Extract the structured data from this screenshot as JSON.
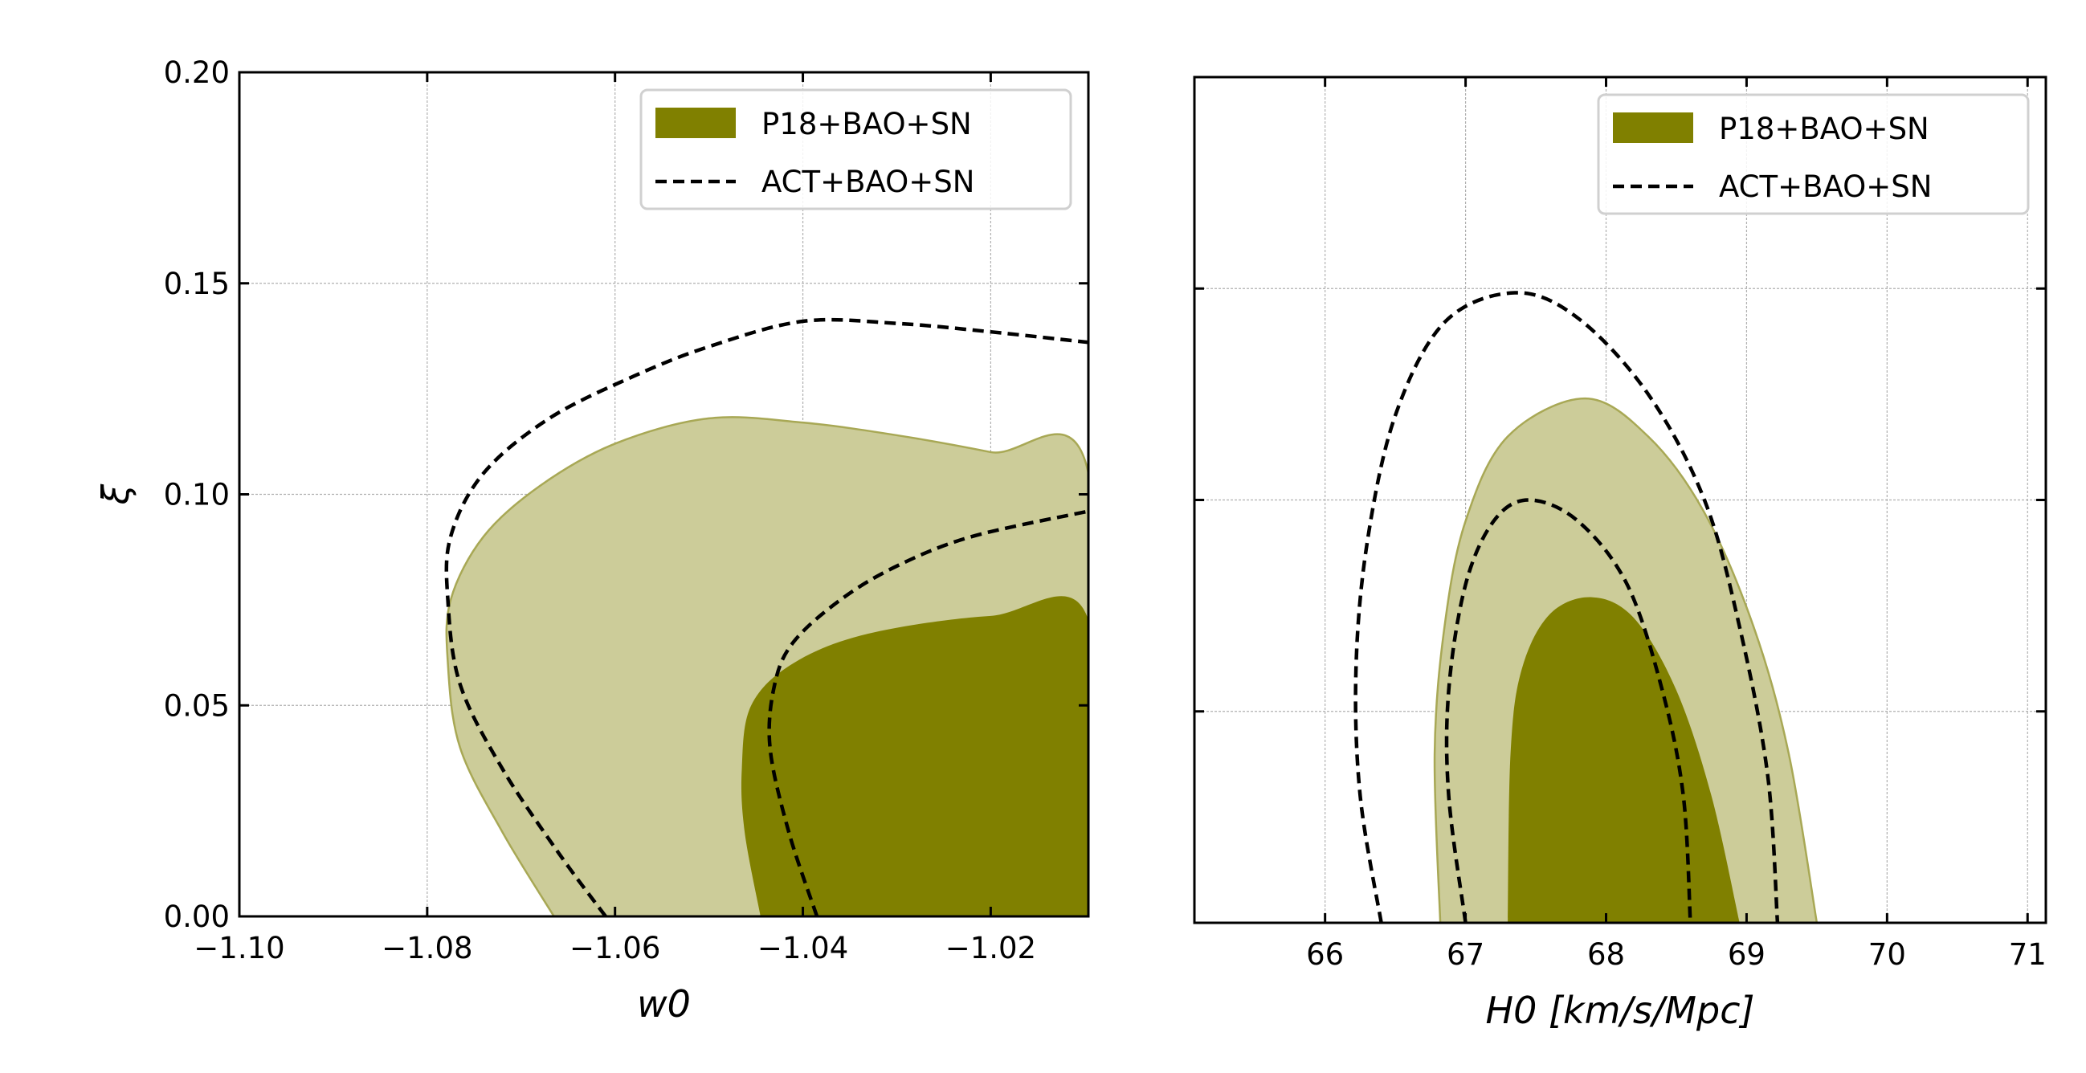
{
  "chart_data": [
    {
      "type": "contour",
      "xlabel": "w0",
      "ylabel": "ξ",
      "xlim": [
        -1.1,
        -1.0096
      ],
      "ylim": [
        0.0,
        0.2
      ],
      "xticks": [
        -1.1,
        -1.08,
        -1.06,
        -1.04,
        -1.02
      ],
      "xtick_labels": [
        "−1.10",
        "−1.08",
        "−1.06",
        "−1.04",
        "−1.02"
      ],
      "yticks": [
        0.0,
        0.05,
        0.1,
        0.15,
        0.2
      ],
      "ytick_labels": [
        "0.00",
        "0.05",
        "0.10",
        "0.15",
        "0.20"
      ],
      "grid": true,
      "legend": {
        "placement": "top-right",
        "entries": [
          "P18+BAO+SN",
          "ACT+BAO+SN"
        ]
      },
      "series": [
        {
          "name": "P18+BAO+SN 2σ",
          "style": "fill-light",
          "points": [
            [
              -1.0665,
              0
            ],
            [
              -1.072,
              0.02
            ],
            [
              -1.0765,
              0.04
            ],
            [
              -1.0778,
              0.06
            ],
            [
              -1.0775,
              0.075
            ],
            [
              -1.074,
              0.09
            ],
            [
              -1.068,
              0.102
            ],
            [
              -1.06,
              0.112
            ],
            [
              -1.05,
              0.118
            ],
            [
              -1.04,
              0.117
            ],
            [
              -1.03,
              0.114
            ],
            [
              -1.02,
              0.11
            ],
            [
              -1.0096,
              0.105
            ],
            [
              -1.0096,
              0
            ]
          ]
        },
        {
          "name": "P18+BAO+SN 1σ",
          "style": "fill-dark",
          "points": [
            [
              -1.0445,
              0
            ],
            [
              -1.0462,
              0.02
            ],
            [
              -1.0465,
              0.035
            ],
            [
              -1.0455,
              0.05
            ],
            [
              -1.041,
              0.06
            ],
            [
              -1.033,
              0.067
            ],
            [
              -1.02,
              0.0712
            ],
            [
              -1.0096,
              0.0702
            ],
            [
              -1.0096,
              0
            ]
          ]
        },
        {
          "name": "ACT+BAO+SN 2σ",
          "style": "dashed",
          "points": [
            [
              -1.061,
              0
            ],
            [
              -1.066,
              0.015
            ],
            [
              -1.072,
              0.035
            ],
            [
              -1.0765,
              0.055
            ],
            [
              -1.0778,
              0.075
            ],
            [
              -1.0775,
              0.09
            ],
            [
              -1.074,
              0.105
            ],
            [
              -1.067,
              0.118
            ],
            [
              -1.058,
              0.128
            ],
            [
              -1.05,
              0.135
            ],
            [
              -1.04,
              0.141
            ],
            [
              -1.03,
              0.1405
            ],
            [
              -1.02,
              0.1385
            ],
            [
              -1.0096,
              0.136
            ]
          ]
        },
        {
          "name": "ACT+BAO+SN 1σ",
          "style": "dashed",
          "points": [
            [
              -1.0385,
              0
            ],
            [
              -1.0415,
              0.02
            ],
            [
              -1.0435,
              0.04
            ],
            [
              -1.043,
              0.055
            ],
            [
              -1.041,
              0.065
            ],
            [
              -1.036,
              0.075
            ],
            [
              -1.03,
              0.083
            ],
            [
              -1.022,
              0.09
            ],
            [
              -1.0096,
              0.096
            ]
          ]
        }
      ]
    },
    {
      "type": "contour",
      "xlabel": "H0 [km/s/Mpc]",
      "ylabel": "",
      "xlim": [
        65.07,
        71.13
      ],
      "ylim": [
        0.0,
        0.2
      ],
      "xticks": [
        66,
        67,
        68,
        69,
        70,
        71
      ],
      "xtick_labels": [
        "66",
        "67",
        "68",
        "69",
        "70",
        "71"
      ],
      "yticks": [
        0.0,
        0.05,
        0.1,
        0.15,
        0.2
      ],
      "grid": true,
      "legend": {
        "placement": "top-right",
        "entries": [
          "P18+BAO+SN",
          "ACT+BAO+SN"
        ]
      },
      "series": [
        {
          "name": "P18+BAO+SN 2σ",
          "style": "fill-light",
          "points": [
            [
              66.82,
              0
            ],
            [
              66.78,
              0.04
            ],
            [
              66.85,
              0.07
            ],
            [
              67.0,
              0.095
            ],
            [
              67.3,
              0.115
            ],
            [
              67.85,
              0.124
            ],
            [
              68.3,
              0.115
            ],
            [
              68.7,
              0.097
            ],
            [
              69.05,
              0.07
            ],
            [
              69.3,
              0.04
            ],
            [
              69.5,
              0
            ]
          ]
        },
        {
          "name": "P18+BAO+SN 1σ",
          "style": "fill-dark",
          "points": [
            [
              67.3,
              0
            ],
            [
              67.32,
              0.04
            ],
            [
              67.4,
              0.06
            ],
            [
              67.6,
              0.073
            ],
            [
              67.9,
              0.077
            ],
            [
              68.2,
              0.072
            ],
            [
              68.5,
              0.055
            ],
            [
              68.75,
              0.03
            ],
            [
              68.95,
              0
            ]
          ]
        },
        {
          "name": "ACT+BAO+SN 2σ",
          "style": "dashed",
          "points": [
            [
              66.4,
              0
            ],
            [
              66.25,
              0.03
            ],
            [
              66.22,
              0.06
            ],
            [
              66.3,
              0.09
            ],
            [
              66.5,
              0.12
            ],
            [
              66.85,
              0.142
            ],
            [
              67.35,
              0.149
            ],
            [
              67.8,
              0.143
            ],
            [
              68.3,
              0.125
            ],
            [
              68.7,
              0.1
            ],
            [
              68.95,
              0.07
            ],
            [
              69.15,
              0.035
            ],
            [
              69.22,
              0
            ]
          ]
        },
        {
          "name": "ACT+BAO+SN 1σ",
          "style": "dashed",
          "points": [
            [
              67.0,
              0
            ],
            [
              66.88,
              0.03
            ],
            [
              66.88,
              0.055
            ],
            [
              67.0,
              0.08
            ],
            [
              67.2,
              0.095
            ],
            [
              67.45,
              0.1
            ],
            [
              67.8,
              0.095
            ],
            [
              68.15,
              0.08
            ],
            [
              68.4,
              0.055
            ],
            [
              68.55,
              0.03
            ],
            [
              68.6,
              0
            ]
          ]
        }
      ]
    }
  ],
  "colors": {
    "dark": "#808000",
    "light": "#cccc99",
    "edge": "#a8a855",
    "grid": "#b0b0b0"
  }
}
